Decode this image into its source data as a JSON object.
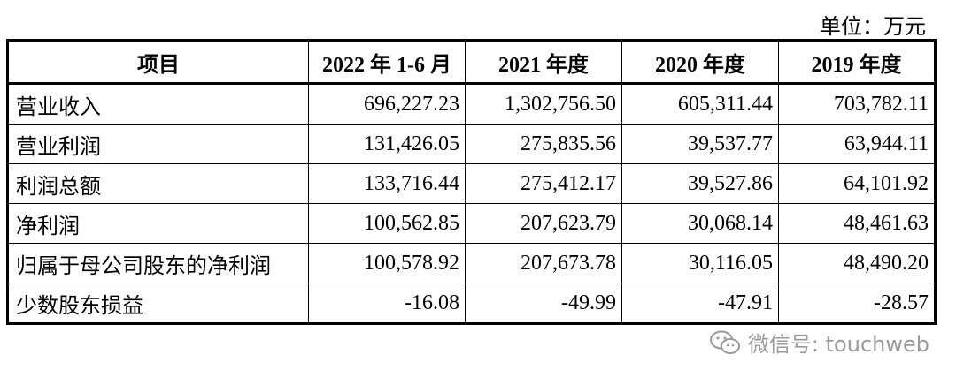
{
  "unit_label": "单位：万元",
  "table": {
    "headers": [
      "项目",
      "2022 年 1-6 月",
      "2021 年度",
      "2020 年度",
      "2019 年度"
    ],
    "rows": [
      {
        "label": "营业收入",
        "values": [
          "696,227.23",
          "1,302,756.50",
          "605,311.44",
          "703,782.11"
        ]
      },
      {
        "label": "营业利润",
        "values": [
          "131,426.05",
          "275,835.56",
          "39,537.77",
          "63,944.11"
        ]
      },
      {
        "label": "利润总额",
        "values": [
          "133,716.44",
          "275,412.17",
          "39,527.86",
          "64,101.92"
        ]
      },
      {
        "label": "净利润",
        "values": [
          "100,562.85",
          "207,623.79",
          "30,068.14",
          "48,461.63"
        ]
      },
      {
        "label": "归属于母公司股东的净利润",
        "values": [
          "100,578.92",
          "207,673.78",
          "30,116.05",
          "48,490.20"
        ]
      },
      {
        "label": "少数股东损益",
        "values": [
          "-16.08",
          "-49.99",
          "-47.91",
          "-28.57"
        ]
      }
    ]
  },
  "watermark": {
    "text": "微信号: touchweb",
    "icon": "wechat-icon"
  }
}
